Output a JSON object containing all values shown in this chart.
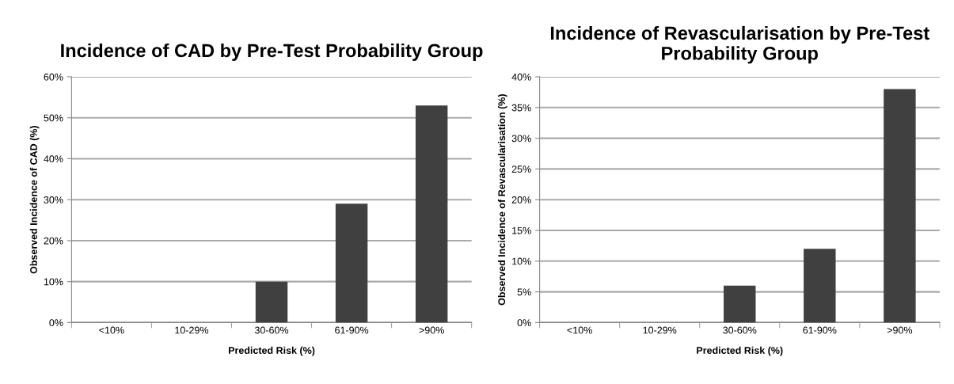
{
  "chart_data": [
    {
      "type": "bar",
      "title": "Incidence of CAD by Pre-Test Probability Group",
      "xlabel": "Predicted Risk (%)",
      "ylabel": "Observed Incidence of CAD (%)",
      "categories": [
        "<10%",
        "10-29%",
        "30-60%",
        "61-90%",
        ">90%"
      ],
      "values": [
        0,
        0,
        10,
        29,
        53
      ],
      "color": "#404040",
      "ylim": [
        0,
        60
      ],
      "yticks": [
        {
          "value": 0,
          "label": "0%"
        },
        {
          "value": 10,
          "label": "10%"
        },
        {
          "value": 20,
          "label": "20%"
        },
        {
          "value": 30,
          "label": "30%"
        },
        {
          "value": 40,
          "label": "40%"
        },
        {
          "value": 50,
          "label": "50%"
        },
        {
          "value": 60,
          "label": "60%"
        }
      ],
      "grid": "y",
      "legend": false
    },
    {
      "type": "bar",
      "title": "Incidence of Revascularisation by Pre-Test Probability Group",
      "xlabel": "Predicted Risk (%)",
      "ylabel": "Observed Incidence of Revascularisation (%)",
      "categories": [
        "<10%",
        "10-29%",
        "30-60%",
        "61-90%",
        ">90%"
      ],
      "values": [
        0,
        0,
        6,
        12,
        38
      ],
      "color": "#404040",
      "ylim": [
        0,
        40
      ],
      "yticks": [
        {
          "value": 0,
          "label": "0%"
        },
        {
          "value": 5,
          "label": "5%"
        },
        {
          "value": 10,
          "label": "10%"
        },
        {
          "value": 15,
          "label": "15%"
        },
        {
          "value": 20,
          "label": "20%"
        },
        {
          "value": 25,
          "label": "25%"
        },
        {
          "value": 30,
          "label": "30%"
        },
        {
          "value": 35,
          "label": "35%"
        },
        {
          "value": 40,
          "label": "40%"
        }
      ],
      "grid": "y",
      "legend": false
    }
  ]
}
